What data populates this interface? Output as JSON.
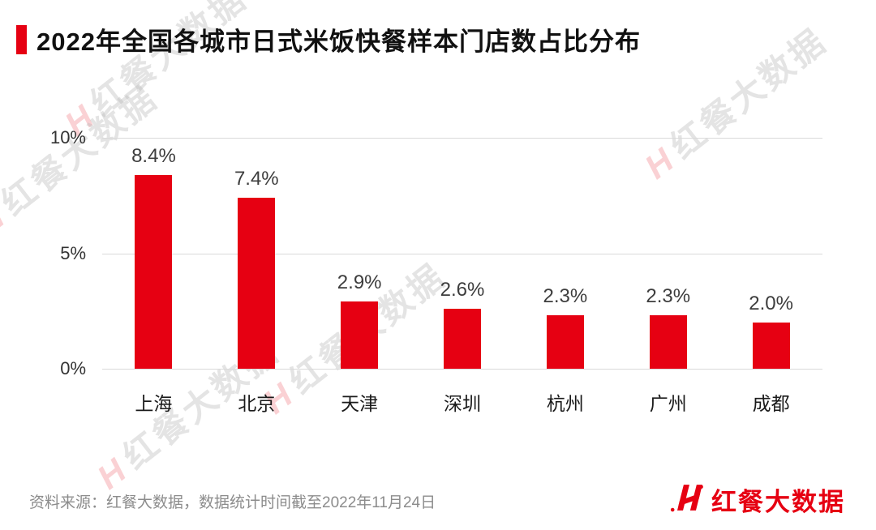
{
  "page": {
    "title": "2022年全国各城市日式米饭快餐样本门店数占比分布"
  },
  "chart_data": {
    "type": "bar",
    "title": "2022年全国各城市日式米饭快餐样本门店数占比分布",
    "categories": [
      "上海",
      "北京",
      "天津",
      "深圳",
      "杭州",
      "广州",
      "成都"
    ],
    "values": [
      8.4,
      7.4,
      2.9,
      2.6,
      2.3,
      2.3,
      2.0
    ],
    "value_labels": [
      "8.4%",
      "7.4%",
      "2.9%",
      "2.6%",
      "2.3%",
      "2.3%",
      "2.0%"
    ],
    "yticks": [
      "10%",
      "5%",
      "0%"
    ],
    "ylim": [
      0,
      10
    ],
    "grid": true,
    "legend": "none",
    "bar_color": "#e60012",
    "xlabel": "",
    "ylabel": ""
  },
  "footer": {
    "source": "资料来源：红餐大数据，数据统计时间截至2022年11月24日",
    "brand": "红餐大数据"
  },
  "watermark": {
    "text": "红餐大数据"
  },
  "colors": {
    "accent": "#e60012",
    "grid": "#d9d9d9",
    "value_label": "#3d3d3d",
    "source_text": "#8c8c8c"
  }
}
